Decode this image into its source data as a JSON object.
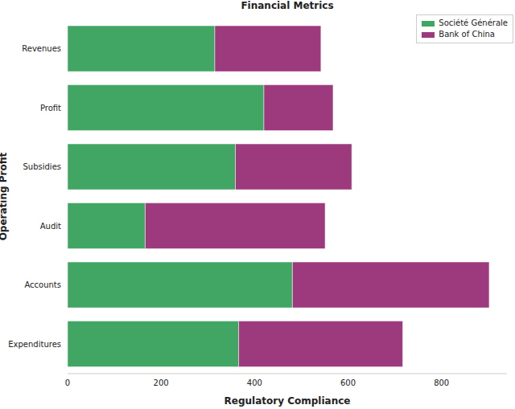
{
  "chart_data": {
    "type": "bar",
    "title": "Financial Metrics",
    "x_label": "Regulatory Compliance",
    "y_label": "Operating Profit",
    "orientation": "horizontal",
    "stacked": true,
    "legend": "upper right",
    "grid": false,
    "categories": [
      "Revenues",
      "Profit",
      "Subsidies",
      "Audit",
      "Accounts",
      "Expenditures"
    ],
    "series": [
      {
        "name": "Société Générale",
        "color": "#41a563",
        "values": [
          315,
          420,
          359,
          166,
          481,
          366
        ]
      },
      {
        "name": "Bank of China",
        "color": "#9c3a7d",
        "values": [
          227,
          148,
          249,
          385,
          421,
          351
        ]
      }
    ],
    "xlim": [
      0,
      940
    ],
    "xticks": [
      0,
      200,
      400,
      600,
      800
    ]
  }
}
